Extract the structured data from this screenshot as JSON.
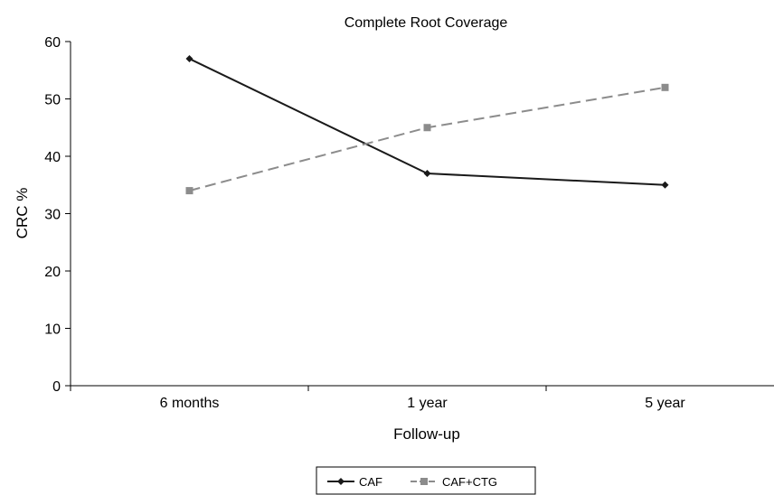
{
  "chart_data": {
    "type": "line",
    "title": "Complete Root Coverage",
    "xlabel": "Follow-up",
    "ylabel": "CRC %",
    "categories": [
      "6 months",
      "1 year",
      "5 year"
    ],
    "ylim": [
      0,
      60
    ],
    "yticks": [
      "0",
      "10",
      "20",
      "30",
      "40",
      "50",
      "60"
    ],
    "grid": false,
    "legend_position": "bottom-center",
    "series": [
      {
        "name": "CAF",
        "values": [
          57,
          37,
          35
        ],
        "color": "#1a1a1a",
        "dash": "solid",
        "marker": "diamond"
      },
      {
        "name": "CAF+CTG",
        "values": [
          34,
          45,
          52
        ],
        "color": "#8c8c8c",
        "dash": "dashed",
        "marker": "square"
      }
    ]
  }
}
